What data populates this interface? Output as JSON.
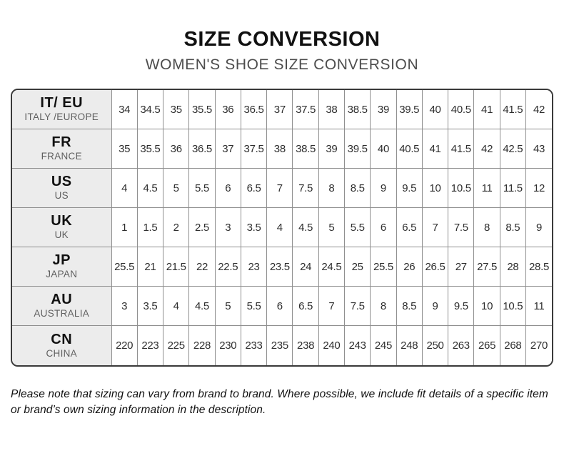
{
  "header": {
    "title": "SIZE CONVERSION",
    "subtitle": "WOMEN'S SHOE SIZE CONVERSION"
  },
  "chart_data": {
    "type": "table",
    "title": "SIZE CONVERSION",
    "subtitle": "WOMEN'S SHOE SIZE CONVERSION",
    "row_header_columns": [
      "code",
      "region"
    ],
    "rows": [
      {
        "code": "IT/ EU",
        "region": "ITALY /EUROPE",
        "values": [
          "34",
          "34.5",
          "35",
          "35.5",
          "36",
          "36.5",
          "37",
          "37.5",
          "38",
          "38.5",
          "39",
          "39.5",
          "40",
          "40.5",
          "41",
          "41.5",
          "42"
        ]
      },
      {
        "code": "FR",
        "region": "FRANCE",
        "values": [
          "35",
          "35.5",
          "36",
          "36.5",
          "37",
          "37.5",
          "38",
          "38.5",
          "39",
          "39.5",
          "40",
          "40.5",
          "41",
          "41.5",
          "42",
          "42.5",
          "43"
        ]
      },
      {
        "code": "US",
        "region": "US",
        "values": [
          "4",
          "4.5",
          "5",
          "5.5",
          "6",
          "6.5",
          "7",
          "7.5",
          "8",
          "8.5",
          "9",
          "9.5",
          "10",
          "10.5",
          "11",
          "11.5",
          "12"
        ]
      },
      {
        "code": "UK",
        "region": "UK",
        "values": [
          "1",
          "1.5",
          "2",
          "2.5",
          "3",
          "3.5",
          "4",
          "4.5",
          "5",
          "5.5",
          "6",
          "6.5",
          "7",
          "7.5",
          "8",
          "8.5",
          "9"
        ]
      },
      {
        "code": "JP",
        "region": "JAPAN",
        "values": [
          "25.5",
          "21",
          "21.5",
          "22",
          "22.5",
          "23",
          "23.5",
          "24",
          "24.5",
          "25",
          "25.5",
          "26",
          "26.5",
          "27",
          "27.5",
          "28",
          "28.5"
        ]
      },
      {
        "code": "AU",
        "region": "AUSTRALIA",
        "values": [
          "3",
          "3.5",
          "4",
          "4.5",
          "5",
          "5.5",
          "6",
          "6.5",
          "7",
          "7.5",
          "8",
          "8.5",
          "9",
          "9.5",
          "10",
          "10.5",
          "11"
        ]
      },
      {
        "code": "CN",
        "region": "CHINA",
        "values": [
          "220",
          "223",
          "225",
          "228",
          "230",
          "233",
          "235",
          "238",
          "240",
          "243",
          "245",
          "248",
          "250",
          "263",
          "265",
          "268",
          "270"
        ]
      }
    ]
  },
  "footer": {
    "note": "Please note that sizing can vary from brand to brand. Where possible, we include fit details of a specific item or brand’s own sizing information in the description."
  },
  "colors": {
    "label_cell_bg": "#ececec",
    "grid_line": "#8f8f8f",
    "outer_border": "#3a3a3a",
    "title_text": "#111111",
    "subtitle_text": "#4d4d4d",
    "cell_text": "#2e2e2e",
    "region_text": "#5f5f5f"
  }
}
